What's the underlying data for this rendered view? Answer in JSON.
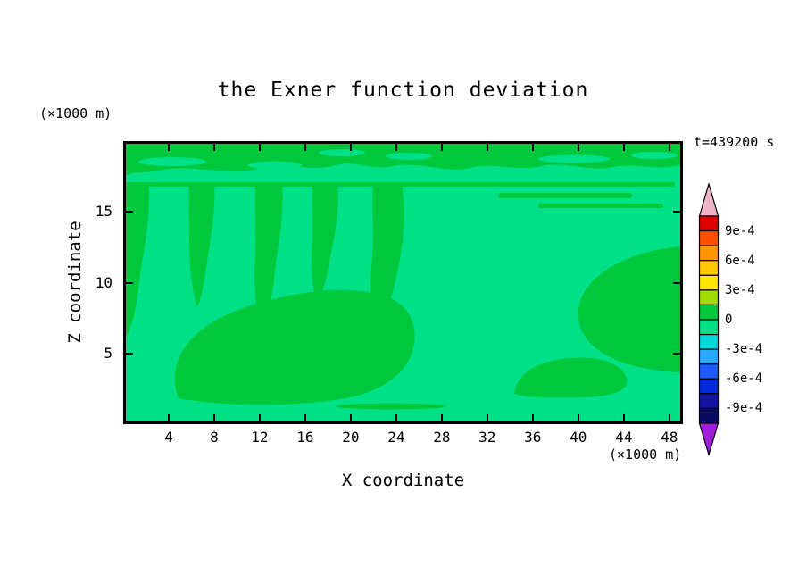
{
  "title": "the Exner function deviation",
  "time_label": "t=439200 s",
  "axes": {
    "x_label": "X coordinate",
    "x_unit_label": "(×1000 m)",
    "z_label": "Z coordinate",
    "z_unit_label": "(×1000 m)",
    "x_ticks": [
      4,
      8,
      12,
      16,
      20,
      24,
      28,
      32,
      36,
      40,
      44,
      48
    ],
    "z_ticks": [
      5,
      10,
      15
    ],
    "x_range": [
      0,
      49.2
    ],
    "z_range": [
      0,
      20
    ]
  },
  "colors": {
    "field_background_green": "#00e187",
    "field_feature_green": "#00c83c",
    "frame": "#000000",
    "text": "#000000"
  },
  "colorbar": {
    "segment_colors": [
      "#e00000",
      "#ff5000",
      "#ff9600",
      "#ffc800",
      "#ffe600",
      "#a0dc00",
      "#00c83c",
      "#00e187",
      "#00d7d7",
      "#2da8ff",
      "#1e5aff",
      "#0028dc",
      "#1414a0",
      "#0a0a64"
    ],
    "labels": [
      "9e-4",
      "6e-4",
      "3e-4",
      "0",
      "-3e-4",
      "-6e-4",
      "-9e-4"
    ],
    "top_arrow_color": "#f0b4c8",
    "bottom_arrow_color": "#a01edc",
    "level_step": 0.00015
  },
  "chart_data": {
    "type": "heatmap",
    "title": "the Exner function deviation",
    "xlabel": "X coordinate (×1000 m)",
    "ylabel": "Z coordinate (×1000 m)",
    "x_range": [
      0,
      49.2
    ],
    "z_range": [
      0,
      20
    ],
    "time_annotation": "t=439200 s",
    "colorbar_levels": [
      0.0009,
      0.0006,
      0.0003,
      0,
      -0.0003,
      -0.0006,
      -0.0009
    ],
    "value_bins_shown": [
      [
        0,
        0.00015
      ],
      [
        -0.00015,
        0
      ]
    ],
    "field_description": [
      {
        "range": [
          0,
          0.00015
        ],
        "region": "horizontal band across top of domain, z ≈ 17.5–20, full width, with small lighter holes"
      },
      {
        "range": [
          0,
          0.00015
        ],
        "region": "thin layer at z ≈ 17 spanning nearly the full width"
      },
      {
        "range": [
          0,
          0.00015
        ],
        "region": "descending plumes from z ≈ 17 down to z ≈ 7–10 near x ≈ 1, 7, 12.5, 17.5, 23"
      },
      {
        "range": [
          0,
          0.00015
        ],
        "region": "broad amorphous region x ≈ 5–26, z ≈ 2–10"
      },
      {
        "range": [
          0,
          0.00015
        ],
        "region": "region attached to right edge x ≈ 33–49, z ≈ 4–12.5"
      },
      {
        "range": [
          0,
          0.00015
        ],
        "region": "patch near bottom x ≈ 34–44, z ≈ 2–4.5 and thin sliver near x ≈ 19–29, z ≈ 1.3"
      },
      {
        "range": [
          -0.00015,
          0
        ],
        "region": "background everywhere else"
      }
    ]
  }
}
